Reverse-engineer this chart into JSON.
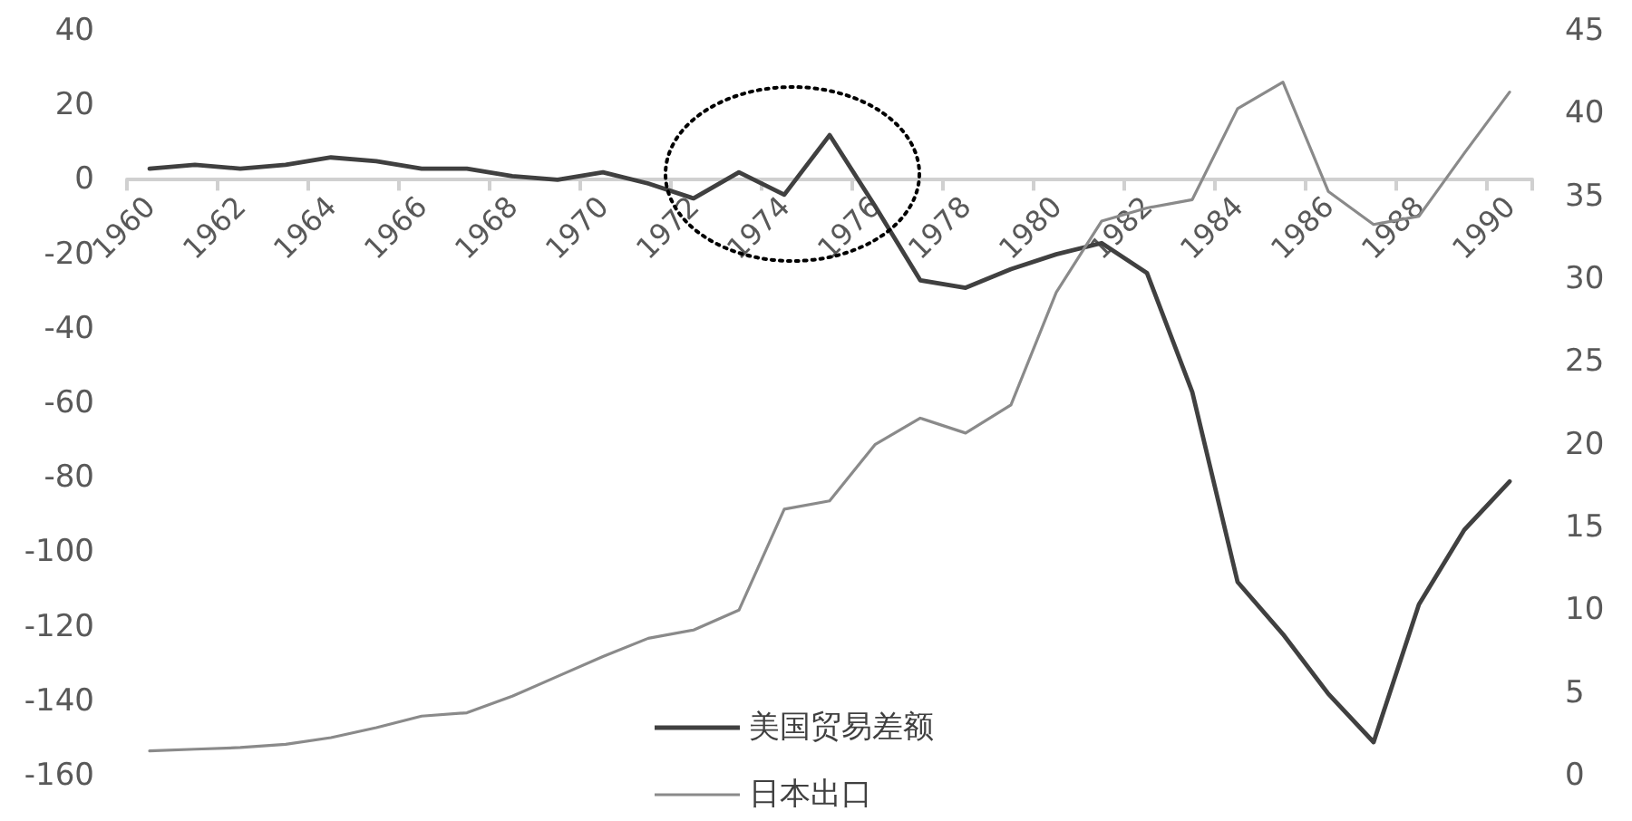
{
  "chart_data": {
    "type": "line",
    "categories": [
      "1960",
      null,
      "1962",
      null,
      "1964",
      null,
      "1966",
      null,
      "1968",
      null,
      "1970",
      null,
      "1972",
      null,
      "1974",
      null,
      "1976",
      null,
      "1978",
      null,
      "1980",
      null,
      "1982",
      null,
      "1984",
      null,
      "1986",
      null,
      "1988",
      null,
      "1990"
    ],
    "series": [
      {
        "name": "美国贸易差额",
        "color": "#404040",
        "values": [
          3,
          4,
          3,
          4,
          6,
          5,
          3,
          3,
          1,
          0,
          2,
          -1,
          -5,
          2,
          -4,
          12,
          -7,
          -27,
          -29,
          -24,
          -20,
          -17,
          -25,
          -57,
          -108,
          -122,
          -138,
          -151,
          -114,
          -94,
          -81
        ]
      },
      {
        "name": "日本出口",
        "color": "#8a8a8a",
        "axis": "y2",
        "values": [
          1.5,
          1.6,
          1.7,
          1.9,
          2.3,
          2.9,
          3.6,
          3.8,
          4.8,
          6.0,
          7.2,
          8.3,
          8.8,
          10.0,
          16.1,
          16.6,
          20.0,
          21.6,
          20.7,
          22.4,
          29.2,
          33.5,
          34.3,
          34.8,
          40.3,
          41.9,
          35.3,
          33.3,
          33.8,
          37.6,
          41.3
        ]
      }
    ],
    "ylim": [
      -160,
      40
    ],
    "yticks": [
      -160,
      -140,
      -120,
      -100,
      -80,
      -60,
      -40,
      -20,
      0,
      20,
      40
    ],
    "y2lim": [
      0,
      45
    ],
    "y2ticks": [
      0,
      5,
      10,
      15,
      20,
      25,
      30,
      35,
      40,
      45
    ],
    "grid": false,
    "legend": "bottom",
    "marker": "none",
    "line_style": "solid"
  }
}
